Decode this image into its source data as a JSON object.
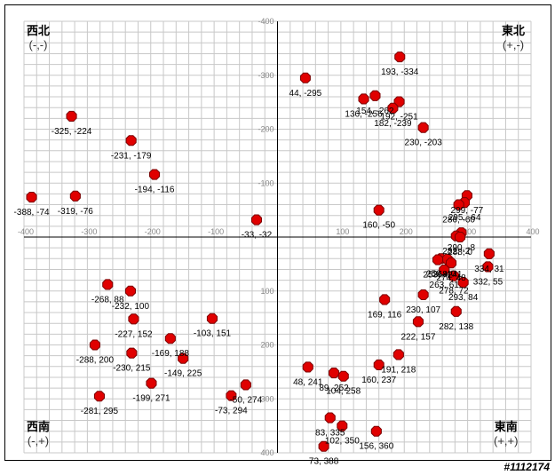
{
  "corners": {
    "nw": {
      "label": "西北",
      "sign": "(-,-)"
    },
    "ne": {
      "label": "東北",
      "sign": "(+,-)"
    },
    "sw": {
      "label": "西南",
      "sign": "(-,+)"
    },
    "se": {
      "label": "東南",
      "sign": "(+,+)"
    }
  },
  "watermark": "#1112174",
  "colors": {
    "point_fill": "#e00000",
    "point_stroke": "#7a0000",
    "grid": "#c8c8c8",
    "axis": "#000000",
    "tick_text": "#888888"
  },
  "chart_data": {
    "type": "scatter",
    "xlim": [
      -400,
      400
    ],
    "ylim": [
      -400,
      400
    ],
    "y_inverted": true,
    "grid": true,
    "x_ticks": [
      -400,
      -300,
      -200,
      -100,
      0,
      100,
      200,
      300,
      400
    ],
    "x_tick_labels": [
      "-400",
      "-300",
      "-200",
      "-100",
      "0",
      "100",
      "200",
      "300",
      "400"
    ],
    "y_ticks": [
      -400,
      -300,
      -200,
      -100,
      0,
      100,
      200,
      300,
      400
    ],
    "y_tick_labels": [
      "-400",
      "-300",
      "-200",
      "-100",
      "0",
      "100",
      "200",
      "300",
      "400"
    ],
    "points": [
      {
        "x": 193,
        "y": -334,
        "label": "193, -334"
      },
      {
        "x": 44,
        "y": -295,
        "label": "44, -295"
      },
      {
        "x": 154,
        "y": -262,
        "label": "154, -262"
      },
      {
        "x": 136,
        "y": -256,
        "label": "136, -256"
      },
      {
        "x": 192,
        "y": -251,
        "label": "192, -251"
      },
      {
        "x": 182,
        "y": -239,
        "label": "182, -239"
      },
      {
        "x": 230,
        "y": -203,
        "label": "230, -203"
      },
      {
        "x": -325,
        "y": -224,
        "label": "-325, -224"
      },
      {
        "x": -231,
        "y": -179,
        "label": "-231, -179"
      },
      {
        "x": -194,
        "y": -116,
        "label": "-194, -116"
      },
      {
        "x": -388,
        "y": -74,
        "label": "-388, -74"
      },
      {
        "x": -319,
        "y": -76,
        "label": "-319, -76"
      },
      {
        "x": -33,
        "y": -32,
        "label": "-33, -32"
      },
      {
        "x": 160,
        "y": -50,
        "label": "160, -50"
      },
      {
        "x": 299,
        "y": -77,
        "label": "299, -77"
      },
      {
        "x": 295,
        "y": -64,
        "label": "295, -64"
      },
      {
        "x": 286,
        "y": -60,
        "label": "286, -60"
      },
      {
        "x": 290,
        "y": -8,
        "label": "290, -8"
      },
      {
        "x": 282,
        "y": -2,
        "label": "282, -2"
      },
      {
        "x": 258,
        "y": 40,
        "label": "258, 40"
      },
      {
        "x": 268,
        "y": 41,
        "label": "268, 41"
      },
      {
        "x": 288,
        "y": 0,
        "label": "288, 0"
      },
      {
        "x": 253,
        "y": 42,
        "label": "253, 42"
      },
      {
        "x": 274,
        "y": 48,
        "label": "274, 48"
      },
      {
        "x": 334,
        "y": 31,
        "label": "334, 31"
      },
      {
        "x": 332,
        "y": 55,
        "label": "332, 55"
      },
      {
        "x": 278,
        "y": 72,
        "label": "278, 72"
      },
      {
        "x": 263,
        "y": 61,
        "label": "263, 61"
      },
      {
        "x": 230,
        "y": 107,
        "label": "230, 107"
      },
      {
        "x": 293,
        "y": 84,
        "label": "293, 84"
      },
      {
        "x": 169,
        "y": 116,
        "label": "169, 116"
      },
      {
        "x": 282,
        "y": 138,
        "label": "282, 138"
      },
      {
        "x": 222,
        "y": 157,
        "label": "222, 157"
      },
      {
        "x": 191,
        "y": 218,
        "label": "191, 218"
      },
      {
        "x": 160,
        "y": 237,
        "label": "160, 237"
      },
      {
        "x": -268,
        "y": 88,
        "label": "-268, 88"
      },
      {
        "x": -232,
        "y": 100,
        "label": "-232, 100"
      },
      {
        "x": -227,
        "y": 152,
        "label": "-227, 152"
      },
      {
        "x": -103,
        "y": 151,
        "label": "-103, 151"
      },
      {
        "x": -288,
        "y": 200,
        "label": "-288, 200"
      },
      {
        "x": -169,
        "y": 188,
        "label": "-169, 188"
      },
      {
        "x": -230,
        "y": 215,
        "label": "-230, 215"
      },
      {
        "x": -149,
        "y": 225,
        "label": "-149, 225"
      },
      {
        "x": -199,
        "y": 271,
        "label": "-199, 271"
      },
      {
        "x": -50,
        "y": 274,
        "label": "-50, 274"
      },
      {
        "x": -281,
        "y": 295,
        "label": "-281, 295"
      },
      {
        "x": -73,
        "y": 294,
        "label": "-73, 294"
      },
      {
        "x": 48,
        "y": 241,
        "label": "48, 241"
      },
      {
        "x": 89,
        "y": 252,
        "label": "89, 252"
      },
      {
        "x": 104,
        "y": 258,
        "label": "104, 258"
      },
      {
        "x": 83,
        "y": 335,
        "label": "83, 335"
      },
      {
        "x": 102,
        "y": 350,
        "label": "102, 350"
      },
      {
        "x": 156,
        "y": 360,
        "label": "156, 360"
      },
      {
        "x": 73,
        "y": 388,
        "label": "73, 388"
      }
    ]
  }
}
